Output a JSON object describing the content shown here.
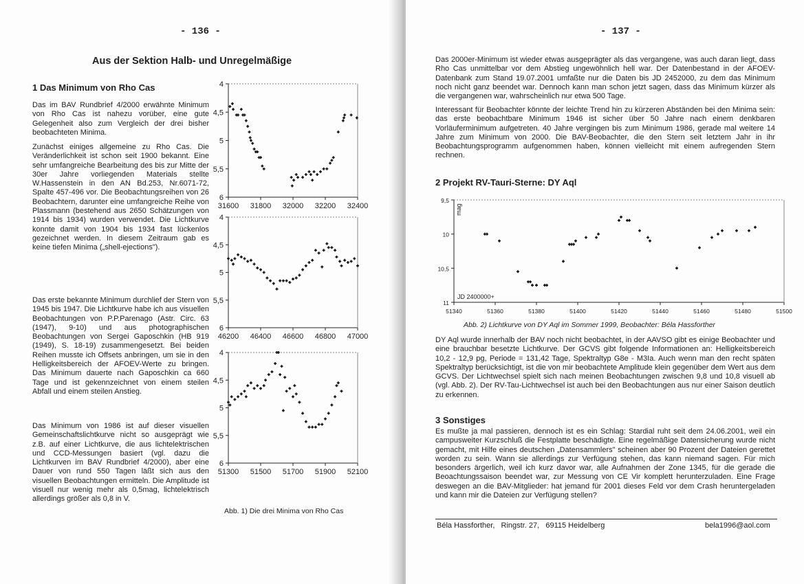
{
  "left": {
    "page_number": "- 136 -",
    "title": "Aus der Sektion Halb- und Unregelmäßige",
    "section_heading": "1  Das Minimum von Rho Cas",
    "paragraphs": [
      "Das im BAV Rundbrief 4/2000 erwähnte Minimum von Rho Cas ist nahezu vorüber, eine gute Gelegenheit also zum Vergleich der drei bisher beobachteten Minima.",
      "Zunächst einiges allgemeine zu Rho Cas. Die Veränderlichkeit ist schon seit 1900 bekannt. Eine sehr umfangreiche Bearbeitung des bis zur Mitte der 30er Jahre vorliegenden Materials stellte W.Hassenstein in den AN Bd.253, Nr.6071-72, Spalte 457-496 vor. Die Beobachtungsreihen von 26 Beobachtern, darunter eine umfangreiche Reihe von Plassmann (bestehend aus 2650 Schätzungen von 1914 bis 1934) wurden verwendet. Die Lichtkurve konnte damit von 1904 bis 1934 fast lückenlos gezeichnet werden. In diesem Zeitraum gab es keine tiefen Minima („shell-ejections\").",
      "Das erste bekannte Minimum durchlief der Stern von 1945 bis 1947. Die Lichtkurve habe ich aus visuellen Beobachtungen von P.P.Parenago (Astr. Circ. 63 (1947), 9-10) und aus photographischen Beobachtungen von Sergei Gaposchkin (HB 919 (1949), S. 18-19) zusammengesetzt. Bei beiden Reihen musste ich Offsets anbringen, um sie in den Helligkeitsbereich der AFOEV-Werte zu bringen. Das Minimum dauerte nach Gaposchkin ca 660 Tage und ist gekennzeichnet von einem steilen Abfall und einem steilen Anstieg.",
      "Das Minimum von 1986 ist auf dieser visuellen Gemeinschaftslichtkurve nicht so ausgeprägt wie z.B. auf einer Lichtkurve, die aus lichtelektrischen und CCD-Messungen basiert (vgl. dazu die Lichtkurven im BAV Rundbrief 4/2000), aber eine Dauer von rund 550 Tagen läßt sich aus den visuellen Beobachtungen ermitteln. Die Amplitude ist visuell nur wenig mehr als 0,5mag, lichtelektrisch allerdings größer als 0,8 in V."
    ],
    "figure_caption": "Abb. 1) Die drei Minima von Rho Cas"
  },
  "right": {
    "page_number": "- 137 -",
    "paragraphs_top": [
      "Das 2000er-Minimum ist wieder etwas ausgeprägter als das vergangene, was auch daran liegt, dass Rho Cas unmittelbar vor dem Abstieg ungewöhnlich hell war. Der Datenbestand in der AFOEV-Datenbank zum Stand 19.07.2001 umfaßte nur die Daten bis JD 2452000, zu dem das Minimum noch nicht ganz beendet war. Dennoch kann man schon jetzt sagen, dass das Minimum kürzer als die vergangenen war, wahrscheinlich nur etwa 500 Tage.",
      "Interessant für Beobachter könnte der leichte Trend hin zu kürzeren Abständen bei den Minima sein: das erste beobachtbare Minimum 1946 ist sicher über 50 Jahre nach einem denkbaren Vorläuferminimum aufgetreten. 40 Jahre vergingen bis zum Minimum 1986, gerade mal weitere 14 Jahre zum Minimum von 2000. Die BAV-Beobachter, die den Stern seit letztem Jahr in ihr Beobachtungsprogramm aufgenommen haben, können vielleicht mit einem aufregenden Stern rechnen."
    ],
    "section2_heading": "2  Projekt RV-Tauri-Sterne: DY Aql",
    "figure_caption": "Abb. 2) Lichtkurve von DY Aql im Sommer 1999, Beobachter: Béla Hassforther",
    "paragraph_dyaql": "DY Aql wurde innerhalb der BAV noch nicht beobachtet, in der AAVSO gibt es einige Beobachter und eine brauchbar besetzte Lichtkurve. Der GCVS gibt folgende Informationen an: Helligkeitsbereich 10,2 - 12,9 pg, Periode = 131,42 Tage, Spektraltyp G8e - M3Ia. Auch wenn man den recht späten Spektraltyp berücksichtigt, ist die von mir beobachtete Amplitude klein gegenüber dem Wert aus dem GCVS. Der Lichtwechsel spielt sich nach meinen Beobachtungen zwischen 9,8 und 10,8 visuell ab (vgl. Abb. 2). Der RV-Tau-Lichtwechsel ist auch bei den Beobachtungen aus nur einer Saison deutlich zu erkennen.",
    "section3_heading": "3  Sonstiges",
    "paragraph_sonstiges": "Es mußte ja mal passieren, dennoch ist es ein Schlag: Stardial ruht seit dem 24.06.2001, weil ein campusweiter Kurzschluß die Festplatte beschädigte. Eine regelmäßige Datensicherung wurde nicht gemacht, mit Hilfe eines deutschen „Datensammlers\" scheinen aber 90 Prozent der Dateien gerettet worden zu sein. Wann sie allerdings zur Verfügung stehen, das kann niemand sagen. Für mich besonders ärgerlich, weil ich kurz davor war, alle Aufnahmen der Zone 1345, für die gerade die Beoachtungssaison beendet war, zur Messung von CE Vir komplett herunterzuladen. Eine Frage deswegen an die BAV-Mitglieder: hat jemand für 2001 dieses Feld vor dem Crash heruntergeladen und kann mir die Dateien zur Verfügung stellen?",
    "footer_address": "Béla Hassforther,   Ringstr. 27,   69115 Heidelberg",
    "footer_email": "bela1996@aol.com"
  },
  "chart_data": [
    {
      "type": "scatter",
      "xlim": [
        31600,
        32400
      ],
      "ylim": [
        6,
        4
      ],
      "y_inverted": true,
      "xticks": [
        "31600",
        "31800",
        "32000",
        "32200",
        "32400"
      ],
      "yticks": [
        "4",
        "4,5",
        "5",
        "5,5",
        "6"
      ],
      "grid": false,
      "x": [
        31610,
        31625,
        31630,
        31650,
        31660,
        31680,
        31690,
        31700,
        31710,
        31720,
        31730,
        31735,
        31740,
        31750,
        31760,
        31770,
        31780,
        31790,
        31800,
        31810,
        31820,
        31990,
        31995,
        32005,
        32020,
        32030,
        32060,
        32080,
        32100,
        32110,
        32120,
        32130,
        32150,
        32170,
        32190,
        32210,
        32230,
        32240,
        32250,
        32280,
        32310,
        32315,
        32320,
        32360,
        32395
      ],
      "y": [
        4.4,
        4.35,
        4.45,
        4.55,
        4.55,
        4.45,
        4.55,
        4.55,
        4.65,
        4.75,
        4.85,
        4.95,
        5.0,
        5.05,
        5.15,
        5.2,
        5.2,
        5.3,
        5.3,
        5.45,
        5.5,
        5.65,
        5.8,
        5.7,
        5.6,
        5.65,
        5.65,
        5.6,
        5.55,
        5.6,
        5.7,
        5.55,
        5.6,
        5.55,
        5.5,
        5.5,
        5.4,
        5.35,
        5.3,
        4.85,
        4.65,
        4.6,
        4.55,
        4.55,
        4.6
      ]
    },
    {
      "type": "scatter",
      "xlim": [
        46200,
        47000
      ],
      "ylim": [
        6,
        4
      ],
      "y_inverted": true,
      "xticks": [
        "46200",
        "46400",
        "46600",
        "46800",
        "47000"
      ],
      "yticks": [
        "4",
        "4,5",
        "5",
        "5,5",
        "6"
      ],
      "grid": false,
      "x": [
        46200,
        46220,
        46230,
        46240,
        46260,
        46280,
        46300,
        46320,
        46340,
        46360,
        46380,
        46400,
        46420,
        46440,
        46460,
        46480,
        46500,
        46520,
        46540,
        46560,
        46580,
        46600,
        46620,
        46640,
        46660,
        46680,
        46700,
        46720,
        46740,
        46760,
        46780,
        46790,
        46810,
        46820,
        46840,
        46860,
        46870,
        46890,
        46900,
        46920,
        46940,
        46960,
        46980,
        47000
      ],
      "y": [
        4.75,
        4.78,
        4.85,
        4.75,
        4.68,
        4.72,
        4.75,
        4.8,
        4.78,
        4.85,
        4.92,
        4.95,
        5.0,
        5.1,
        5.15,
        5.2,
        5.3,
        5.15,
        5.15,
        5.15,
        5.18,
        5.12,
        5.1,
        5.05,
        4.95,
        4.88,
        4.82,
        4.78,
        4.6,
        4.65,
        4.9,
        4.6,
        4.48,
        4.55,
        4.55,
        4.6,
        4.72,
        4.8,
        4.88,
        4.78,
        4.82,
        4.8,
        4.75,
        4.88
      ]
    },
    {
      "type": "scatter",
      "xlim": [
        51300,
        52100
      ],
      "ylim": [
        6,
        4
      ],
      "y_inverted": true,
      "xticks": [
        "51300",
        "51500",
        "51700",
        "51900",
        "52100"
      ],
      "yticks": [
        "4",
        "4,5",
        "5",
        "5,5",
        "6"
      ],
      "grid": false,
      "x": [
        51300,
        51310,
        51320,
        51340,
        51360,
        51380,
        51400,
        51410,
        51420,
        51440,
        51460,
        51480,
        51500,
        51520,
        51530,
        51550,
        51570,
        51590,
        51600,
        51610,
        51620,
        51630,
        51640,
        51650,
        51660,
        51680,
        51700,
        51710,
        51720,
        51740,
        51760,
        51780,
        51800,
        51820,
        51840,
        51860,
        51880,
        51900,
        51920,
        51940,
        51960,
        51970,
        51980,
        52000
      ],
      "y": [
        4.9,
        4.95,
        4.8,
        4.85,
        4.8,
        4.75,
        4.7,
        4.8,
        4.6,
        4.55,
        4.65,
        4.6,
        4.65,
        4.6,
        4.5,
        4.4,
        4.35,
        4.2,
        4.0,
        4.0,
        4.4,
        4.25,
        5.05,
        4.45,
        4.7,
        4.65,
        4.8,
        4.6,
        4.75,
        4.9,
        5.1,
        5.25,
        5.35,
        5.35,
        5.35,
        5.3,
        5.3,
        5.2,
        5.1,
        4.95,
        4.8,
        4.6,
        4.55,
        4.7
      ]
    },
    {
      "type": "scatter",
      "xlim": [
        51340,
        51500
      ],
      "ylim": [
        11,
        9.5
      ],
      "y_inverted": true,
      "ylabel": "mag",
      "annotation": "JD 2400000+",
      "xticks": [
        "51340",
        "51360",
        "51380",
        "51400",
        "51420",
        "51440",
        "51460",
        "51480",
        "51500"
      ],
      "yticks": [
        "9,5",
        "10",
        "10,5",
        "11"
      ],
      "grid": false,
      "x": [
        51355,
        51356,
        51362,
        51371,
        51376,
        51377,
        51378,
        51380,
        51384,
        51385,
        51393,
        51396,
        51397,
        51398,
        51399,
        51404,
        51409,
        51410,
        51420,
        51421,
        51424,
        51425,
        51430,
        51434,
        51435,
        51448,
        51459,
        51465,
        51468,
        51470,
        51477,
        51483,
        51486
      ],
      "y": [
        10.0,
        10.0,
        10.1,
        10.55,
        10.7,
        10.7,
        10.75,
        10.75,
        10.75,
        10.75,
        10.4,
        10.15,
        10.15,
        10.15,
        10.1,
        10.05,
        10.05,
        10.0,
        9.8,
        9.75,
        9.8,
        9.8,
        9.95,
        10.05,
        10.1,
        10.5,
        10.2,
        10.05,
        10.0,
        9.95,
        9.95,
        9.95,
        9.9
      ]
    }
  ]
}
